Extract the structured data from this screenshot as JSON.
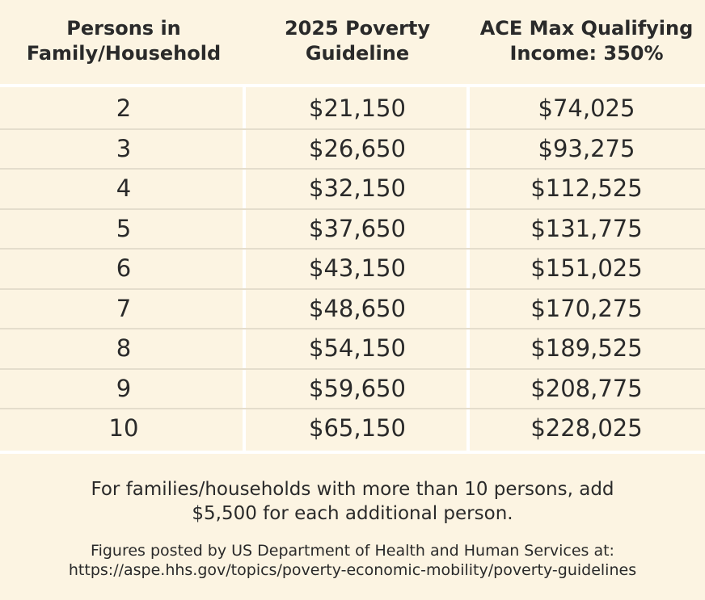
{
  "table": {
    "header": [
      [
        "Persons in",
        "Family/Household"
      ],
      [
        "2025 Poverty",
        "Guideline"
      ],
      [
        "ACE Max Qualifying",
        "Income: 350%"
      ]
    ],
    "rows": [
      [
        "2",
        "$21,150",
        "$74,025"
      ],
      [
        "3",
        "$26,650",
        "$93,275"
      ],
      [
        "4",
        "$32,150",
        "$112,525"
      ],
      [
        "5",
        "$37,650",
        "$131,775"
      ],
      [
        "6",
        "$43,150",
        "$151,025"
      ],
      [
        "7",
        "$48,650",
        "$170,275"
      ],
      [
        "8",
        "$54,150",
        "$189,525"
      ],
      [
        "9",
        "$59,650",
        "$208,775"
      ],
      [
        "10",
        "$65,150",
        "$228,025"
      ]
    ]
  },
  "footer": {
    "note": [
      "For families/households with more than 10 persons, add",
      "$5,500 for each additional person."
    ],
    "source": [
      "Figures posted by US Department of Health and Human Services at:",
      "https://aspe.hhs.gov/topics/poverty-economic-mobility/poverty-guidelines"
    ]
  }
}
